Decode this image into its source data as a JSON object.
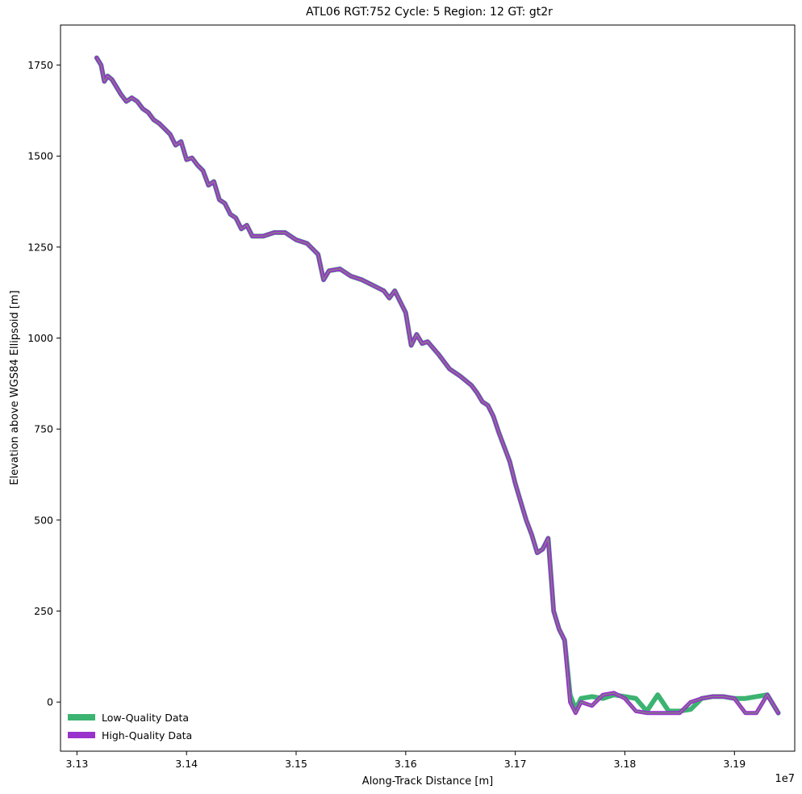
{
  "chart_data": {
    "type": "line",
    "title": "ATL06 RGT:752 Cycle: 5 Region: 12 GT: gt2r",
    "xlabel": "Along-Track Distance [m]",
    "ylabel": "Elevation above WGS84 Ellipsoid [m]",
    "x_offset_label": "1e7",
    "x_units_scale": 10000000,
    "xlim": [
      3.1285,
      3.1955
    ],
    "ylim": [
      -135,
      1860
    ],
    "x_ticks": [
      3.13,
      3.14,
      3.15,
      3.16,
      3.17,
      3.18,
      3.19
    ],
    "x_tick_labels": [
      "3.13",
      "3.14",
      "3.15",
      "3.16",
      "3.17",
      "3.18",
      "3.19"
    ],
    "y_ticks": [
      0,
      250,
      500,
      750,
      1000,
      1250,
      1500,
      1750
    ],
    "y_tick_labels": [
      "0",
      "250",
      "500",
      "750",
      "1000",
      "1250",
      "1500",
      "1750"
    ],
    "grid": false,
    "legend_position": "lower-left",
    "series": [
      {
        "name": "Low-Quality Data",
        "color": "#3cb371",
        "x": [
          3.1318,
          3.1322,
          3.1325,
          3.1328,
          3.1332,
          3.1336,
          3.134,
          3.1345,
          3.135,
          3.1355,
          3.136,
          3.1365,
          3.137,
          3.1375,
          3.138,
          3.1385,
          3.139,
          3.1395,
          3.14,
          3.1405,
          3.141,
          3.1415,
          3.142,
          3.1425,
          3.143,
          3.1435,
          3.144,
          3.1445,
          3.145,
          3.1455,
          3.146,
          3.147,
          3.148,
          3.149,
          3.15,
          3.151,
          3.152,
          3.1525,
          3.153,
          3.154,
          3.155,
          3.156,
          3.157,
          3.158,
          3.1585,
          3.159,
          3.1595,
          3.16,
          3.1605,
          3.161,
          3.1615,
          3.162,
          3.163,
          3.164,
          3.165,
          3.166,
          3.1665,
          3.167,
          3.1675,
          3.168,
          3.1685,
          3.169,
          3.1695,
          3.17,
          3.1705,
          3.171,
          3.1715,
          3.172,
          3.1725,
          3.173,
          3.1735,
          3.174,
          3.1745,
          3.175,
          3.1755,
          3.176,
          3.177,
          3.178,
          3.179,
          3.18,
          3.181,
          3.182,
          3.183,
          3.184,
          3.185,
          3.186,
          3.187,
          3.188,
          3.189,
          3.19,
          3.191,
          3.192,
          3.193,
          3.194
        ],
        "y": [
          1770,
          1750,
          1705,
          1720,
          1710,
          1690,
          1670,
          1650,
          1660,
          1650,
          1630,
          1620,
          1600,
          1590,
          1575,
          1560,
          1530,
          1540,
          1490,
          1495,
          1475,
          1460,
          1420,
          1430,
          1380,
          1370,
          1340,
          1330,
          1300,
          1310,
          1280,
          1280,
          1290,
          1290,
          1270,
          1260,
          1230,
          1160,
          1185,
          1190,
          1170,
          1160,
          1145,
          1130,
          1110,
          1130,
          1100,
          1070,
          980,
          1010,
          985,
          990,
          955,
          915,
          895,
          870,
          850,
          825,
          815,
          785,
          740,
          700,
          660,
          600,
          550,
          500,
          460,
          410,
          420,
          450,
          250,
          200,
          170,
          20,
          -20,
          10,
          15,
          10,
          20,
          15,
          10,
          -25,
          20,
          -25,
          -25,
          -20,
          10,
          15,
          15,
          10,
          10,
          15,
          20,
          -30
        ]
      },
      {
        "name": "High-Quality Data",
        "color": "#9932cc",
        "x": [
          3.1318,
          3.1322,
          3.1325,
          3.1328,
          3.1332,
          3.1336,
          3.134,
          3.1345,
          3.135,
          3.1355,
          3.136,
          3.1365,
          3.137,
          3.1375,
          3.138,
          3.1385,
          3.139,
          3.1395,
          3.14,
          3.1405,
          3.141,
          3.1415,
          3.142,
          3.1425,
          3.143,
          3.1435,
          3.144,
          3.1445,
          3.145,
          3.1455,
          3.146,
          3.147,
          3.148,
          3.149,
          3.15,
          3.151,
          3.152,
          3.1525,
          3.153,
          3.154,
          3.155,
          3.156,
          3.157,
          3.158,
          3.1585,
          3.159,
          3.1595,
          3.16,
          3.1605,
          3.161,
          3.1615,
          3.162,
          3.163,
          3.164,
          3.165,
          3.166,
          3.1665,
          3.167,
          3.1675,
          3.168,
          3.1685,
          3.169,
          3.1695,
          3.17,
          3.1705,
          3.171,
          3.1715,
          3.172,
          3.1725,
          3.173,
          3.1735,
          3.174,
          3.1745,
          3.175,
          3.1755,
          3.176,
          3.177,
          3.178,
          3.179,
          3.18,
          3.181,
          3.182,
          3.183,
          3.184,
          3.185,
          3.186,
          3.187,
          3.188,
          3.189,
          3.19,
          3.191,
          3.192,
          3.193,
          3.194
        ],
        "y": [
          1770,
          1750,
          1705,
          1720,
          1710,
          1690,
          1670,
          1650,
          1660,
          1650,
          1630,
          1620,
          1600,
          1590,
          1575,
          1560,
          1530,
          1540,
          1490,
          1495,
          1475,
          1460,
          1420,
          1430,
          1380,
          1370,
          1340,
          1330,
          1300,
          1310,
          1280,
          1280,
          1290,
          1290,
          1270,
          1260,
          1230,
          1160,
          1185,
          1190,
          1170,
          1160,
          1145,
          1130,
          1110,
          1130,
          1100,
          1070,
          980,
          1010,
          985,
          990,
          955,
          915,
          895,
          870,
          850,
          825,
          815,
          785,
          740,
          700,
          660,
          600,
          550,
          500,
          460,
          410,
          420,
          450,
          250,
          200,
          170,
          0,
          -30,
          0,
          -10,
          20,
          25,
          10,
          -25,
          -30,
          -30,
          -30,
          -30,
          0,
          10,
          15,
          15,
          10,
          -30,
          -30,
          20,
          -30
        ]
      }
    ]
  }
}
